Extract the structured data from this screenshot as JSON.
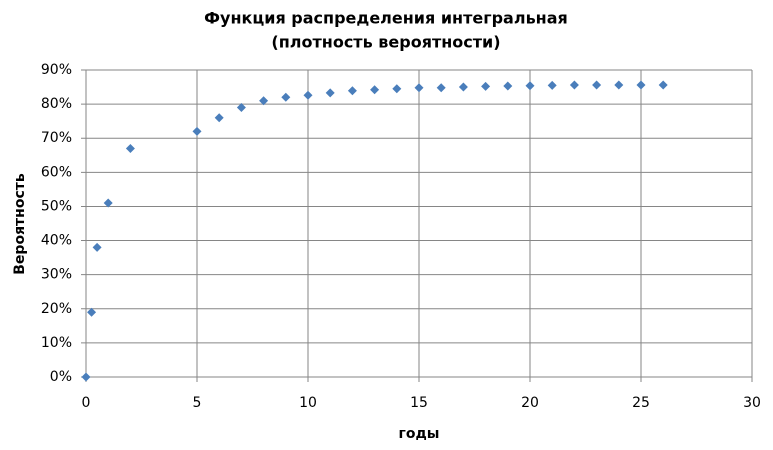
{
  "chart_data": {
    "type": "scatter",
    "title": [
      "Функция распределения  интегральная",
      "(плотность вероятности)"
    ],
    "x_label": "годы",
    "y_label": "Вероятность",
    "x": [
      0,
      0.25,
      0.5,
      1,
      2,
      5,
      6,
      7,
      8,
      9,
      10,
      11,
      12,
      13,
      14,
      15,
      16,
      17,
      18,
      19,
      20,
      21,
      22,
      23,
      24,
      25,
      26
    ],
    "values": [
      0,
      19,
      38,
      51,
      67,
      72,
      76,
      79,
      81,
      82,
      82.6,
      83.3,
      83.9,
      84.2,
      84.5,
      84.8,
      84.8,
      85,
      85.2,
      85.3,
      85.4,
      85.5,
      85.6,
      85.6,
      85.6,
      85.6,
      85.6
    ],
    "color": "#4a7ebb",
    "xlim": [
      0,
      30
    ],
    "xticks": [
      0,
      5,
      10,
      15,
      20,
      25,
      30
    ],
    "ylim": [
      0,
      90
    ],
    "yticks": [
      {
        "value": 0,
        "label": "0%"
      },
      {
        "value": 10,
        "label": "10%"
      },
      {
        "value": 20,
        "label": "20%"
      },
      {
        "value": 30,
        "label": "30%"
      },
      {
        "value": 40,
        "label": "40%"
      },
      {
        "value": 50,
        "label": "50%"
      },
      {
        "value": 60,
        "label": "60%"
      },
      {
        "value": 70,
        "label": "70%"
      },
      {
        "value": 80,
        "label": "80%"
      },
      {
        "value": 90,
        "label": "90%"
      }
    ],
    "grid": true
  }
}
